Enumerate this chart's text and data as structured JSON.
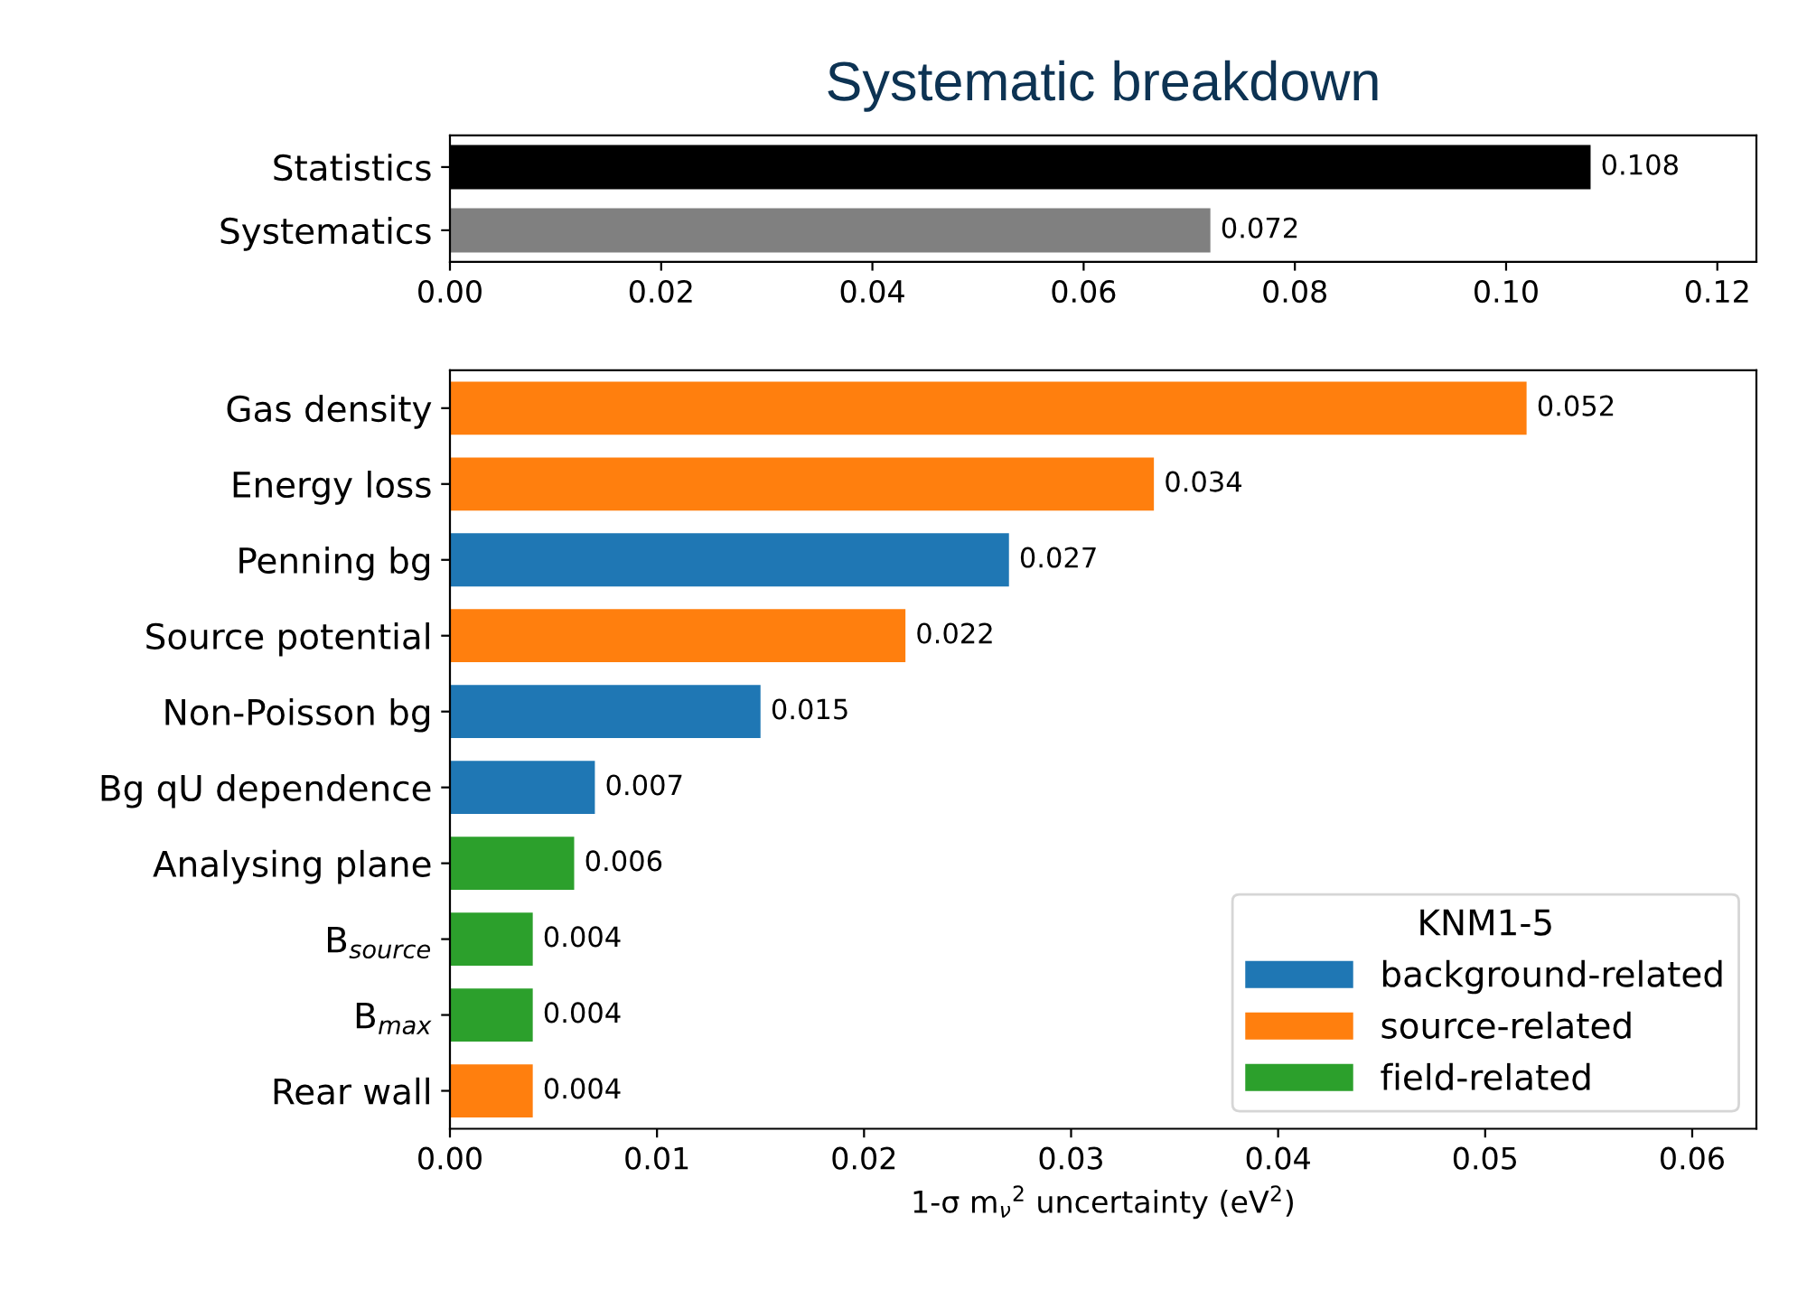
{
  "chart_data": [
    {
      "type": "bar",
      "orientation": "horizontal",
      "title": "Systematic breakdown",
      "categories": [
        "Statistics",
        "Systematics"
      ],
      "values": [
        0.108,
        0.072
      ],
      "colors": [
        "#000000",
        "#808080"
      ],
      "xlim": [
        0,
        0.1237
      ],
      "xticks": [
        {
          "value": 0,
          "label": "0.00"
        },
        {
          "value": 0.02,
          "label": "0.02"
        },
        {
          "value": 0.04,
          "label": "0.04"
        },
        {
          "value": 0.06,
          "label": "0.06"
        },
        {
          "value": 0.08,
          "label": "0.08"
        },
        {
          "value": 0.1,
          "label": "0.10"
        },
        {
          "value": 0.12,
          "label": "0.12"
        }
      ],
      "data_labels": true,
      "grid": false,
      "legend": false
    },
    {
      "type": "bar",
      "orientation": "horizontal",
      "xlabel": "1-σ m$_{ν}$$^{2}$ uncertainty (eV$^{2}$)",
      "legend_title": "KNM1-5",
      "categories": [
        "Gas density",
        "Energy loss",
        "Penning bg",
        "Source potential",
        "Non-Poisson bg",
        "Bg qU dependence",
        "Analysing plane",
        "B$_{source}$",
        "B$_{max}$",
        "Rear wall"
      ],
      "series": [
        {
          "name": "background-related",
          "color": "#1f77b4",
          "values": [
            null,
            null,
            0.027,
            null,
            0.015,
            0.007,
            null,
            null,
            null,
            null
          ]
        },
        {
          "name": "source-related",
          "color": "#ff7f0e",
          "values": [
            0.052,
            0.034,
            null,
            0.022,
            null,
            null,
            null,
            null,
            null,
            0.004
          ]
        },
        {
          "name": "field-related",
          "color": "#2ca02c",
          "values": [
            null,
            null,
            null,
            null,
            null,
            null,
            0.006,
            0.004,
            0.004,
            null
          ]
        }
      ],
      "xlim": [
        0,
        0.0631
      ],
      "xticks": [
        {
          "value": 0,
          "label": "0.00"
        },
        {
          "value": 0.01,
          "label": "0.01"
        },
        {
          "value": 0.02,
          "label": "0.02"
        },
        {
          "value": 0.03,
          "label": "0.03"
        },
        {
          "value": 0.04,
          "label": "0.04"
        },
        {
          "value": 0.05,
          "label": "0.05"
        },
        {
          "value": 0.06,
          "label": "0.06"
        }
      ],
      "data_labels": true,
      "grid": false,
      "legend": "bottom right"
    }
  ]
}
